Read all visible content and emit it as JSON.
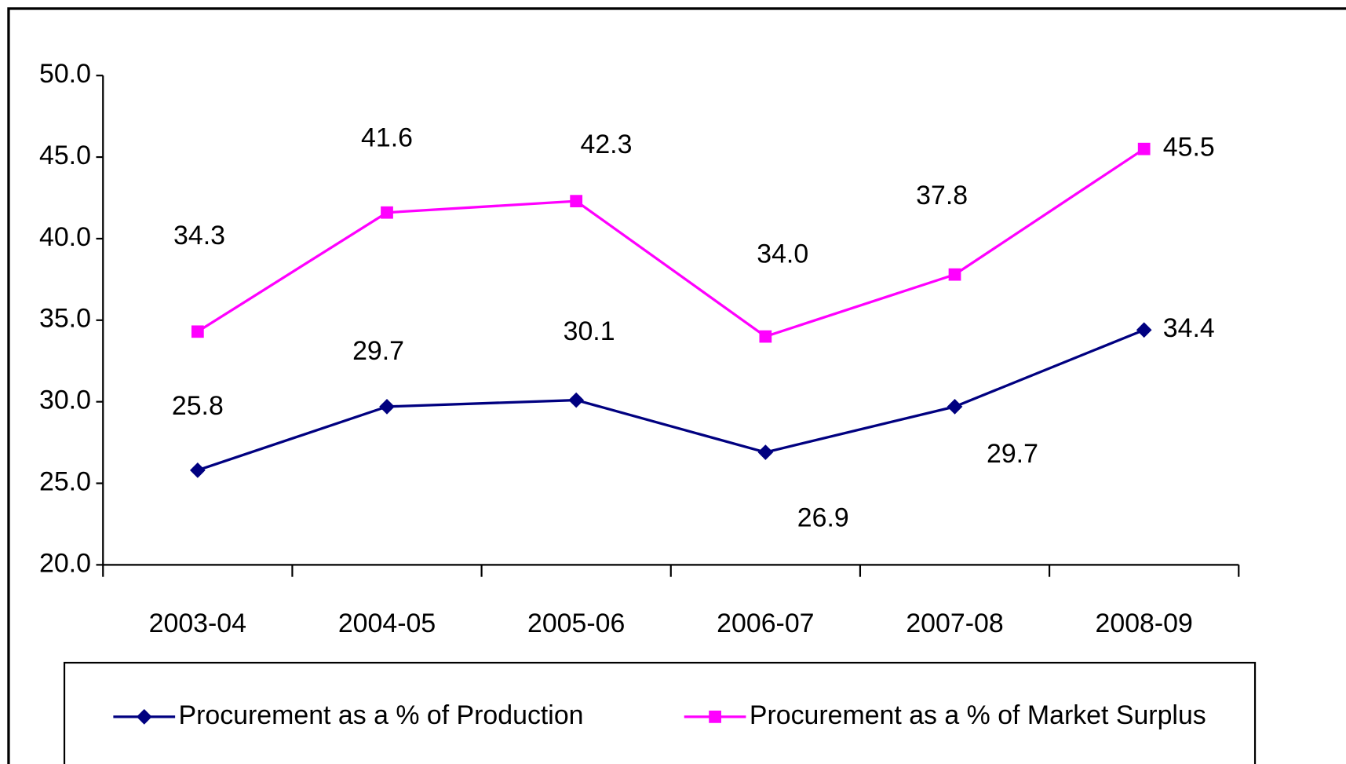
{
  "chart_data": {
    "type": "line",
    "categories": [
      "2003-04",
      "2004-05",
      "2005-06",
      "2006-07",
      "2007-08",
      "2008-09"
    ],
    "series": [
      {
        "name": "Procurement as a % of Production",
        "color": "#000080",
        "marker": "diamond",
        "values": [
          25.8,
          29.7,
          30.1,
          26.9,
          29.7,
          34.4
        ],
        "value_labels": [
          "25.8",
          "29.7",
          "30.1",
          "26.9",
          "29.7",
          "34.4"
        ]
      },
      {
        "name": "Procurement as a % of Market Surplus",
        "color": "#ff00ff",
        "marker": "square",
        "values": [
          34.3,
          41.6,
          42.3,
          34.0,
          37.8,
          45.5
        ],
        "value_labels": [
          "34.3",
          "41.6",
          "42.3",
          "34.0",
          "37.8",
          "45.5"
        ]
      }
    ],
    "ylim": [
      20,
      50
    ],
    "yticks": [
      {
        "value": 20,
        "label": "20.0"
      },
      {
        "value": 25,
        "label": "25.0"
      },
      {
        "value": 30,
        "label": "30.0"
      },
      {
        "value": 35,
        "label": "35.0"
      },
      {
        "value": 40,
        "label": "40.0"
      },
      {
        "value": 45,
        "label": "45.0"
      },
      {
        "value": 50,
        "label": "50.0"
      }
    ],
    "grid": false,
    "legend": "bottom"
  }
}
